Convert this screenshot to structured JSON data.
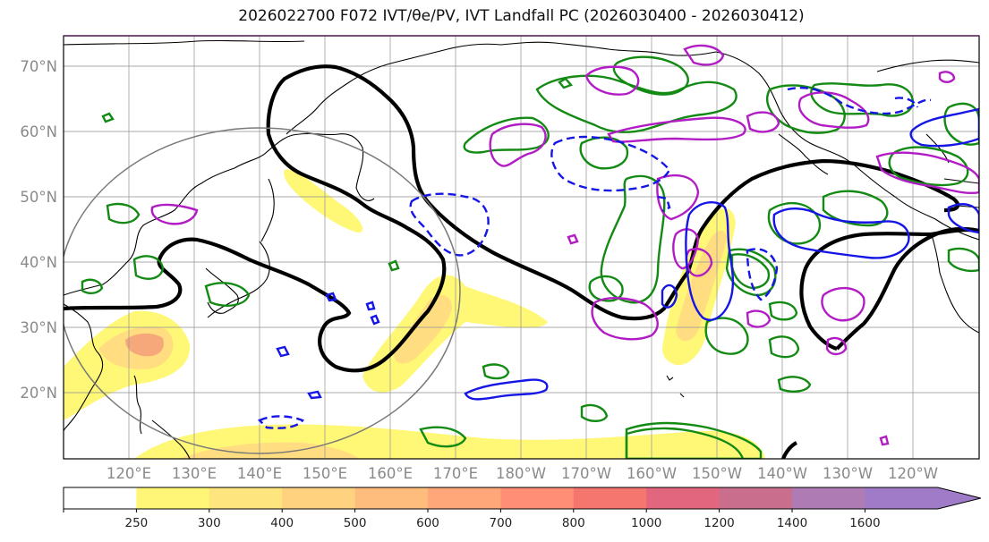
{
  "title": "2026022700 F072 IVT/θe/PV, IVT Landfall PC (2026030400 - 2026030412)",
  "map": {
    "lat_labels": [
      "70°N",
      "60°N",
      "50°N",
      "40°N",
      "30°N",
      "20°N"
    ],
    "lat_values": [
      70,
      60,
      50,
      40,
      30,
      20
    ],
    "lon_labels": [
      "120°E",
      "130°E",
      "140°E",
      "150°E",
      "160°E",
      "170°E",
      "180°W",
      "170°W",
      "160°W",
      "150°W",
      "140°W",
      "130°W",
      "120°W"
    ],
    "lon_values": [
      120,
      130,
      140,
      150,
      160,
      170,
      180,
      190,
      200,
      210,
      220,
      230,
      240
    ],
    "extent": {
      "lon_min": 110,
      "lon_max": 250,
      "lat_min": 10,
      "lat_max": 75
    },
    "colors": {
      "pv_contour": "#000000",
      "theta_e_positive": "#138a13",
      "theta_e_negative": "#1515e6",
      "landfall_pc": "#b21cc4",
      "ocean_edge": "#5a2a5a"
    }
  },
  "colorbar": {
    "levels": [
      "250",
      "300",
      "400",
      "500",
      "600",
      "700",
      "800",
      "1000",
      "1200",
      "1400",
      "1600"
    ],
    "level_values": [
      250,
      300,
      400,
      500,
      600,
      700,
      800,
      1000,
      1200,
      1400,
      1600
    ],
    "colors": [
      "#ffffff",
      "#fff576",
      "#ffe57e",
      "#ffd27f",
      "#ffbd7d",
      "#ffa778",
      "#ff8f74",
      "#f5766f",
      "#e2677e",
      "#c96e8d",
      "#ae7bb4",
      "#a07cc8"
    ],
    "extend": "max"
  }
}
